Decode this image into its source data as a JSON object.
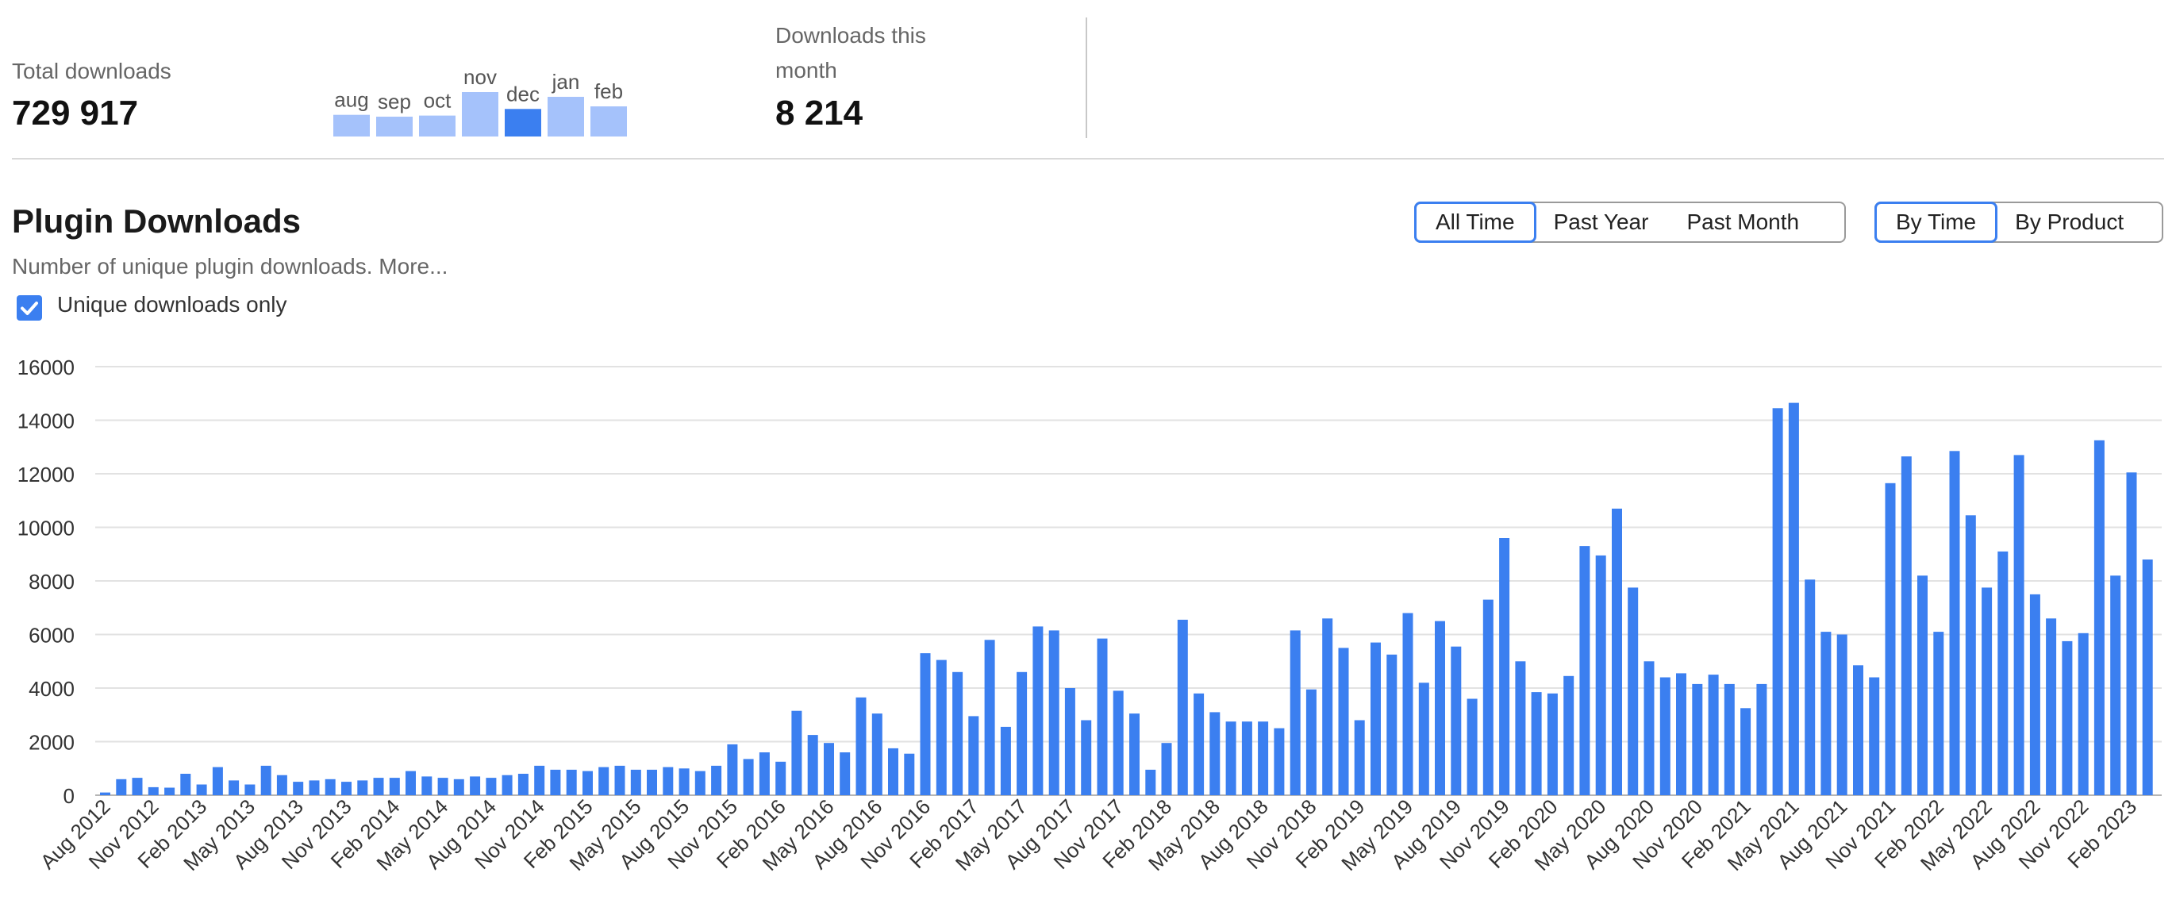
{
  "stats": {
    "total_label": "Total downloads",
    "total_value": "729 917",
    "month_label_line1": "Downloads this",
    "month_label_line2": "month",
    "month_value": "8 214"
  },
  "mini_chart": {
    "labels": [
      "aug",
      "sep",
      "oct",
      "nov",
      "dec",
      "jan",
      "feb"
    ],
    "values": [
      5900,
      5400,
      5700,
      12100,
      7500,
      10800,
      8200
    ],
    "highlight_index": 4,
    "bar_color": "#a5c2fb",
    "highlight_color": "#3b7ff0"
  },
  "header": {
    "title": "Plugin Downloads",
    "subtitle": "Number of unique plugin downloads. More...",
    "checkbox_label": "Unique downloads only",
    "checkbox_checked": true
  },
  "range_tabs": [
    "All Time",
    "Past Year",
    "Past Month"
  ],
  "range_active": 0,
  "group_tabs": [
    "By Time",
    "By Product"
  ],
  "group_active": 0,
  "chart_data": {
    "type": "bar",
    "title": "",
    "xlabel": "",
    "ylabel": "",
    "ylim": [
      0,
      16000
    ],
    "yticks": [
      0,
      2000,
      4000,
      6000,
      8000,
      10000,
      12000,
      14000,
      16000
    ],
    "grid": true,
    "bar_color": "#3b7ff0",
    "start_month": "2012-08",
    "tick_every": 3,
    "tick_labels": [
      "Aug 2012",
      "Nov 2012",
      "Feb 2013",
      "May 2013",
      "Aug 2013",
      "Nov 2013",
      "Feb 2014",
      "May 2014",
      "Aug 2014",
      "Nov 2014",
      "Feb 2015",
      "May 2015",
      "Aug 2015",
      "Nov 2015",
      "Feb 2016",
      "May 2016",
      "Aug 2016",
      "Nov 2016",
      "Feb 2017",
      "May 2017",
      "Aug 2017",
      "Nov 2017",
      "Feb 2018",
      "May 2018",
      "Aug 2018",
      "Nov 2018",
      "Feb 2019",
      "May 2019",
      "Aug 2019",
      "Nov 2019",
      "Feb 2020",
      "May 2020",
      "Aug 2020",
      "Nov 2020",
      "Feb 2021",
      "May 2021",
      "Aug 2021",
      "Nov 2021",
      "Feb 2022",
      "May 2022",
      "Aug 2022",
      "Nov 2022",
      "Feb 2023"
    ],
    "values": [
      100,
      600,
      650,
      300,
      280,
      800,
      400,
      1050,
      550,
      400,
      1100,
      750,
      500,
      550,
      600,
      500,
      550,
      650,
      650,
      900,
      700,
      650,
      600,
      700,
      650,
      750,
      800,
      1100,
      950,
      950,
      900,
      1050,
      1100,
      950,
      950,
      1050,
      1000,
      900,
      1100,
      1900,
      1350,
      1600,
      1250,
      3150,
      2250,
      1950,
      1600,
      3650,
      3050,
      1750,
      1550,
      5300,
      5050,
      4600,
      2950,
      5800,
      2550,
      4600,
      6300,
      6150,
      4000,
      2800,
      5850,
      3900,
      3050,
      950,
      1950,
      6550,
      3800,
      3100,
      2750,
      2750,
      2750,
      2500,
      6150,
      3950,
      6600,
      5500,
      2800,
      5700,
      5250,
      6800,
      4200,
      6500,
      5550,
      3600,
      7300,
      9600,
      5000,
      3850,
      3800,
      4450,
      9300,
      8950,
      10700,
      7750,
      5000,
      4400,
      4550,
      4150,
      4500,
      4150,
      3250,
      4150,
      14450,
      14650,
      8050,
      6100,
      6000,
      4850,
      4400,
      11650,
      12650,
      8200,
      6100,
      12850,
      10450,
      7750,
      9100,
      12700,
      7500,
      6600,
      5750,
      6050,
      13250,
      8200,
      12050,
      8800
    ]
  }
}
